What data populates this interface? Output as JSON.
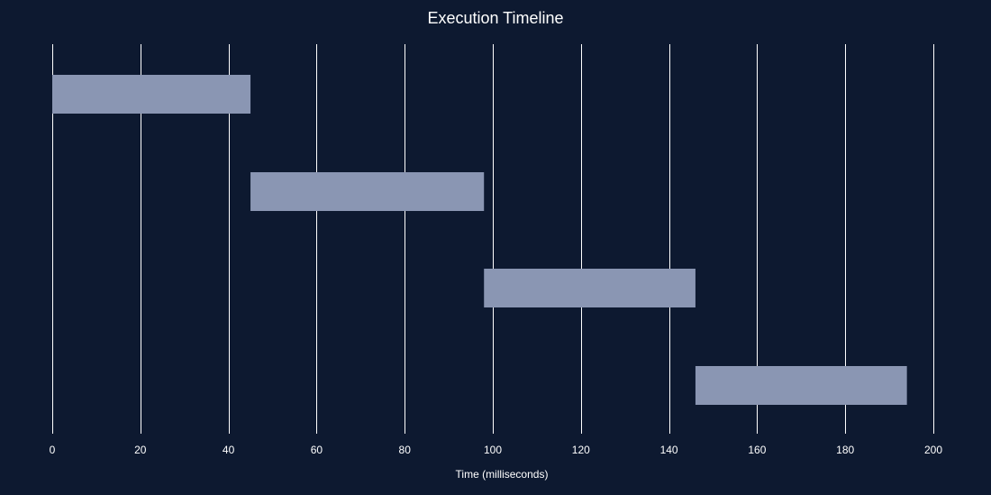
{
  "chart_data": {
    "type": "bar",
    "orientation": "horizontal",
    "title": "Execution Timeline",
    "xlabel": "Time (milliseconds)",
    "ylabel": "",
    "xlim": [
      0,
      200
    ],
    "xticks": [
      0,
      20,
      40,
      60,
      80,
      100,
      120,
      140,
      160,
      180,
      200
    ],
    "grid": true,
    "legend": "none",
    "bars": [
      {
        "start": 0,
        "end": 45
      },
      {
        "start": 45,
        "end": 98
      },
      {
        "start": 98,
        "end": 146
      },
      {
        "start": 146,
        "end": 194
      }
    ]
  },
  "colors": {
    "background": "#0d1930",
    "bar": "#8a96b3",
    "grid": "#ffffff",
    "text": "#ffffff"
  }
}
